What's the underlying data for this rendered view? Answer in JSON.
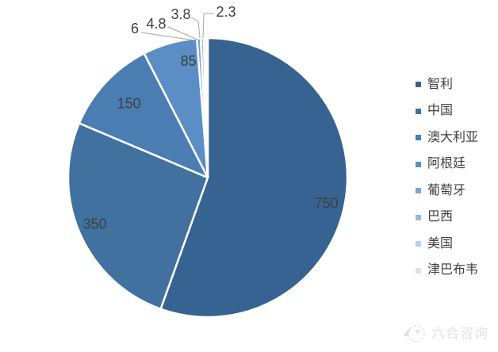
{
  "chart_data": {
    "type": "pie",
    "title": "",
    "categories": [
      "智利",
      "中国",
      "澳大利亚",
      "阿根廷",
      "葡萄牙",
      "巴西",
      "美国",
      "津巴布韦"
    ],
    "values": [
      750,
      350,
      150,
      85,
      6,
      4.8,
      3.8,
      2.3
    ],
    "colors": [
      "#366391",
      "#40719F",
      "#4A7DB2",
      "#5B8EC4",
      "#7AA4D2",
      "#99BADF",
      "#B9CFEA",
      "#D7E3F2"
    ],
    "start_angle_deg": 0,
    "direction": "clockwise",
    "legend_position": "right",
    "slice_border_color": "#FFFFFF",
    "label_color": "#404040",
    "leader_line_color": "#A6A6A6",
    "background": "#FFFFFF"
  },
  "watermark": {
    "text": "六合咨询"
  }
}
